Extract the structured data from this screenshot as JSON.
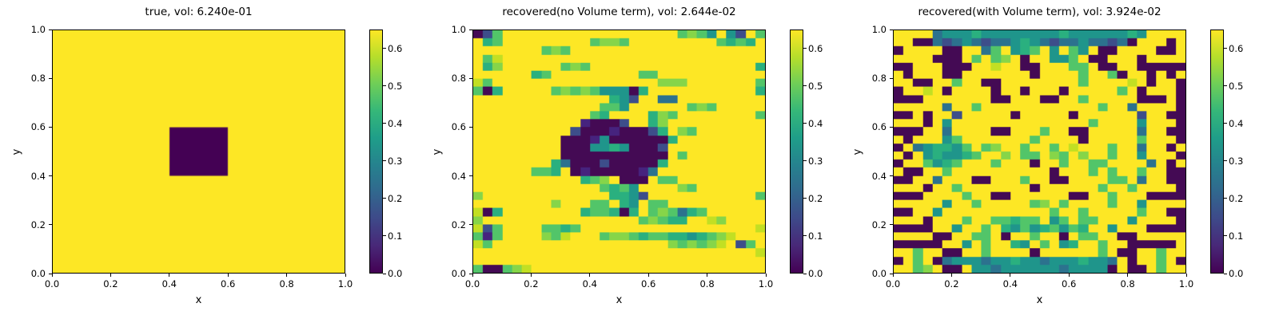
{
  "chart_data": {
    "type": "heatmap",
    "colormap": "viridis",
    "grid_size": [
      30,
      30
    ],
    "value_scale": {
      "min": 0.0,
      "max": 0.65
    },
    "colors": {
      "max": "#fde725",
      "min": "#440154"
    },
    "axes": {
      "xlabel": "x",
      "ylabel": "y",
      "x_range": [
        0.0,
        1.0
      ],
      "y_range": [
        0.0,
        1.0
      ],
      "x_ticks": [
        "0.0",
        "0.2",
        "0.4",
        "0.6",
        "0.8",
        "1.0"
      ],
      "y_ticks": [
        "0.0",
        "0.2",
        "0.4",
        "0.6",
        "0.8",
        "1.0"
      ]
    },
    "colorbar": {
      "ticks": [
        "0.0",
        "0.1",
        "0.2",
        "0.3",
        "0.4",
        "0.5",
        "0.6"
      ],
      "vmin": 0.0,
      "vmax": 0.65,
      "stops": [
        "#440154",
        "#482878",
        "#3e4989",
        "#31688e",
        "#26828e",
        "#1f9e89",
        "#35b779",
        "#6ece58",
        "#b5de2b",
        "#fde725"
      ]
    },
    "palette": {
      ".": "#fde725",
      "L": "#c2df23",
      "G": "#86d549",
      "g": "#52c569",
      "T": "#2ab07f",
      "t": "#1f958b",
      "b": "#2c728e",
      "B": "#3d4e8a",
      "D": "#46237e",
      "d": "#440a54"
    },
    "palette_values": {
      ".": 0.65,
      "L": 0.57,
      "G": 0.51,
      "g": 0.45,
      "T": 0.4,
      "t": 0.33,
      "b": 0.25,
      "B": 0.15,
      "D": 0.07,
      "d": 0.01
    },
    "plots": [
      {
        "title": "true, vol: 6.240e-01",
        "vol": "6.240e-01",
        "kind": "uniform_with_rect",
        "background_value": 0.65,
        "rect": {
          "x": [
            0.4,
            0.6
          ],
          "y": [
            0.4,
            0.6
          ],
          "value": 0.0
        }
      },
      {
        "title": "recovered(no Volume term), vol: 2.644e-02",
        "vol": "2.644e-02",
        "kind": "grid",
        "grid": [
          "dBg..................gGgt.tB.g",
          ".Tg.........gGGg.........gTgT.",
          ".......gGg....................",
          ".gL...........................",
          ".TG......gGg.................T",
          "......Tg.........gg...........",
          "Lg.................GGG.......g",
          "gdT.....gGgGgtttdT...........T",
          "..............TtB..bb.........",
          ".............ggt......gGg.....",
          "............gT....TGg........g",
          "...........DdddB..TG..........",
          "..........BdddDdddBT.Gg.......",
          ".........dddDtddddddT.........",
          ".........dddttTtdddB..........",
          ".........ddddddddddd.g........",
          "........TbdddBdddddT..........",
          "......ggT.dDdddddDb...........",
          "...........TgG.ddd.gg.........",
          ".............gTgt....Gg.......",
          "G.............TTtB...........g",
          "........G...gg.Tt.gg..........",
          "LdT........TggTdT.gGgbTg......",
          "G................gGgTT..LG....",
          "LBg....ggTg..................L",
          "gDg....GgL...gGGgTggTTtTgGL...",
          "Lg..................GgGgGL.Bg.",
          ".............................L",
          "..............................",
          "gddgGL........................"
        ]
      },
      {
        "title": "recovered(with Volume term), vol: 3.924e-02",
        "vol": "3.924e-02",
        "kind": "grid",
        "grid": [
          "....btttTttttttttTttttttTt....",
          "..ddbBbtbBbbtTtbBbbtbbBbd...d.",
          "d....dd..bg.tTg.t.gt.dd....dd.",
          "....ddd.g.gG.d..ttg.dd...d....",
          "dd...ddd..L..dd...gg.dd..ddddd",
          ".d...dd.......d....g..gd..d.d.",
          "..dd..g..dd........g....L.d..d",
          "d..L.d....d..d...d.....g.d...d",
          "ddd.......dd...dd..g.....ddd.d",
          ".....b..g............g..b....d",
          "dd.d..B.....d.....d......B..dd",
          "...d.t..............g....t...d",
          "ddd..b....dd...g..dd.....b..dd",
          ".d...tg.......g....d.....g...d",
          "d.btTTtg.gG..g..g.L...g..b..d.",
          ".d.tTttTg..G.gg.Gg.G..g..t...d",
          "d..gtTg...g...d..g..gg....b.d.",
          ".dd..g..........d...g.g..g..dd",
          "dd..b...dd...g..dd....gg.b..dd",
          "...d..g.......d......g..g....d",
          "ddd....g..dd......dd..g...dddd",
          ".....t..g.....gG.g....g..t....",
          "dd..t...........g..g.....g..dd",
          "...d...g..ggTgg.tg.gg...t....d",
          "dddd..t..g.TtgtTgtgT..t...dddd",
          "....dd..gg.d..g..d.gg..dd.....",
          "ddddd..t.g..Tt.g.tT..g..ddddd.",
          "..g..dd..g....d......g.dd..g..",
          "d.g.dbtttbttTttbtttTttb.d..g.d",
          "..gG.dd.ttbttttttbttttd.dd.g.."
        ]
      }
    ]
  }
}
